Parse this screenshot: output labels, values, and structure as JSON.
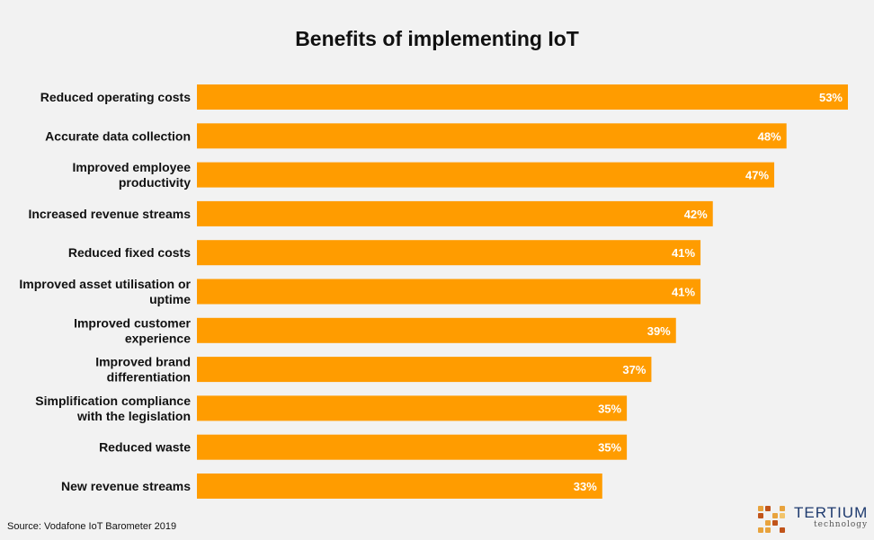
{
  "chart_data": {
    "type": "bar",
    "orientation": "horizontal",
    "title": "Benefits of implementing IoT",
    "categories": [
      [
        "Reduced operating costs"
      ],
      [
        "Accurate data collection"
      ],
      [
        "Improved employee",
        "productivity"
      ],
      [
        "Increased revenue streams"
      ],
      [
        "Reduced fixed costs"
      ],
      [
        "Improved asset utilisation or",
        "uptime"
      ],
      [
        "Improved customer",
        "experience"
      ],
      [
        "Improved brand",
        "differentiation"
      ],
      [
        "Simplification compliance",
        "with the legislation"
      ],
      [
        "Reduced waste"
      ],
      [
        "New revenue streams"
      ]
    ],
    "values": [
      53,
      48,
      47,
      42,
      41,
      41,
      39,
      37,
      35,
      35,
      33
    ],
    "value_suffix": "%",
    "bar_color": "#ff9c00",
    "xlim": [
      0,
      53
    ],
    "xlabel": "",
    "ylabel": "",
    "grid": false
  },
  "source": "Source: Vodafone IoT Barometer 2019",
  "logo": {
    "wordmark": "TERTIUM",
    "tagline": "technology",
    "colors": [
      "#e8a33d",
      "#c1541a",
      "#8c3a14",
      "#f2c46b"
    ]
  }
}
